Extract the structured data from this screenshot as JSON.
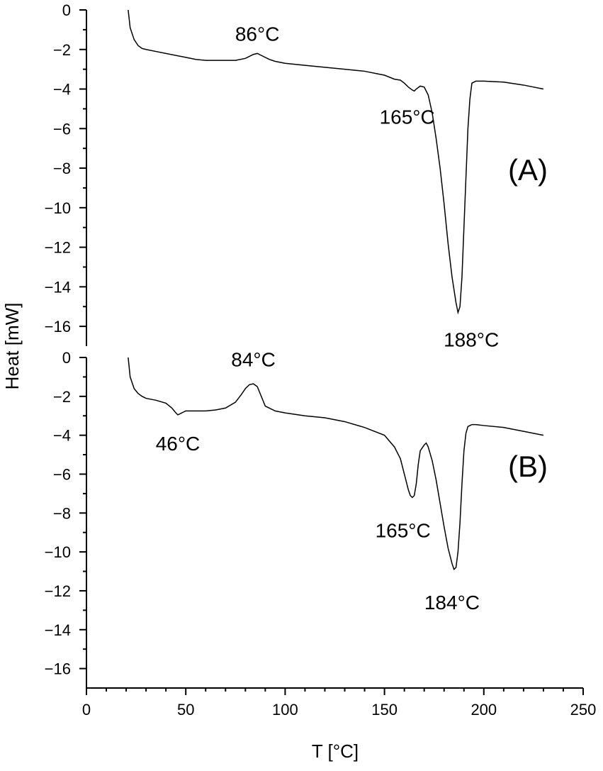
{
  "chart_data": {
    "type": "line",
    "xlabel": "T [°C]",
    "ylabel": "Heat [mW]",
    "xlim": [
      0,
      250
    ],
    "x_ticks": [
      0,
      50,
      100,
      150,
      200,
      250
    ],
    "panels": [
      {
        "label": "(A)",
        "ylim": [
          -17,
          0
        ],
        "y_ticks": [
          0,
          -2,
          -4,
          -6,
          -8,
          -10,
          -12,
          -14,
          -16
        ],
        "annotations": [
          {
            "text": "86°C",
            "x": 86,
            "y": -2.2
          },
          {
            "text": "165°C",
            "x": 165,
            "y": -4.1
          },
          {
            "text": "188°C",
            "x": 188,
            "y": -15.3
          }
        ],
        "series": [
          {
            "x": [
              21,
              22,
              24,
              26,
              28,
              30,
              35,
              40,
              50,
              55,
              60,
              65,
              70,
              75,
              80,
              84,
              86,
              88,
              92,
              95,
              100,
              110,
              120,
              130,
              140,
              150,
              155,
              158,
              160,
              162,
              164,
              165,
              166,
              168,
              170,
              172,
              174,
              176,
              178,
              180,
              182,
              184,
              186,
              187,
              188,
              189,
              190,
              191,
              192,
              193,
              194,
              196,
              200,
              210,
              220,
              230
            ],
            "y": [
              0,
              -0.9,
              -1.5,
              -1.8,
              -1.95,
              -2.0,
              -2.1,
              -2.2,
              -2.4,
              -2.5,
              -2.55,
              -2.55,
              -2.55,
              -2.55,
              -2.45,
              -2.25,
              -2.2,
              -2.3,
              -2.5,
              -2.6,
              -2.7,
              -2.8,
              -2.9,
              -3.0,
              -3.1,
              -3.3,
              -3.5,
              -3.55,
              -3.7,
              -3.9,
              -4.05,
              -4.1,
              -4.0,
              -3.85,
              -3.9,
              -4.3,
              -5.2,
              -6.5,
              -8.0,
              -9.8,
              -11.8,
              -13.5,
              -14.8,
              -15.3,
              -15.0,
              -13.5,
              -11.0,
              -8.5,
              -6.0,
              -4.5,
              -3.7,
              -3.6,
              -3.6,
              -3.65,
              -3.8,
              -4.0
            ]
          }
        ]
      },
      {
        "label": "(B)",
        "ylim": [
          -17,
          0
        ],
        "y_ticks": [
          0,
          -2,
          -4,
          -6,
          -8,
          -10,
          -12,
          -14,
          -16
        ],
        "annotations": [
          {
            "text": "46°C",
            "x": 46,
            "y": -2.95
          },
          {
            "text": "84°C",
            "x": 84,
            "y": -1.4
          },
          {
            "text": "165°C",
            "x": 165,
            "y": -7.2
          },
          {
            "text": "184°C",
            "x": 184,
            "y": -10.9
          }
        ],
        "series": [
          {
            "x": [
              21,
              22,
              24,
              26,
              28,
              30,
              35,
              40,
              43,
              45,
              46,
              47,
              50,
              55,
              60,
              65,
              70,
              75,
              78,
              80,
              82,
              84,
              86,
              88,
              90,
              95,
              100,
              110,
              120,
              130,
              140,
              150,
              155,
              158,
              160,
              162,
              163,
              164,
              165,
              166,
              167,
              168,
              170,
              171,
              172,
              174,
              176,
              178,
              180,
              182,
              184,
              185,
              186,
              187,
              188,
              189,
              190,
              191,
              192,
              194,
              196,
              200,
              210,
              220,
              230
            ],
            "y": [
              0,
              -1.0,
              -1.6,
              -1.85,
              -2.0,
              -2.1,
              -2.2,
              -2.35,
              -2.6,
              -2.85,
              -2.95,
              -2.9,
              -2.75,
              -2.75,
              -2.75,
              -2.7,
              -2.6,
              -2.3,
              -1.9,
              -1.6,
              -1.4,
              -1.35,
              -1.5,
              -2.0,
              -2.5,
              -2.75,
              -2.85,
              -3.0,
              -3.1,
              -3.3,
              -3.6,
              -4.0,
              -4.6,
              -5.2,
              -6.0,
              -6.8,
              -7.1,
              -7.2,
              -7.1,
              -6.5,
              -5.5,
              -4.8,
              -4.5,
              -4.4,
              -4.6,
              -5.3,
              -6.3,
              -7.5,
              -8.7,
              -9.8,
              -10.6,
              -10.9,
              -10.8,
              -10.0,
              -8.5,
              -6.5,
              -4.8,
              -3.9,
              -3.55,
              -3.45,
              -3.45,
              -3.5,
              -3.6,
              -3.8,
              -4.0
            ]
          }
        ]
      }
    ]
  }
}
